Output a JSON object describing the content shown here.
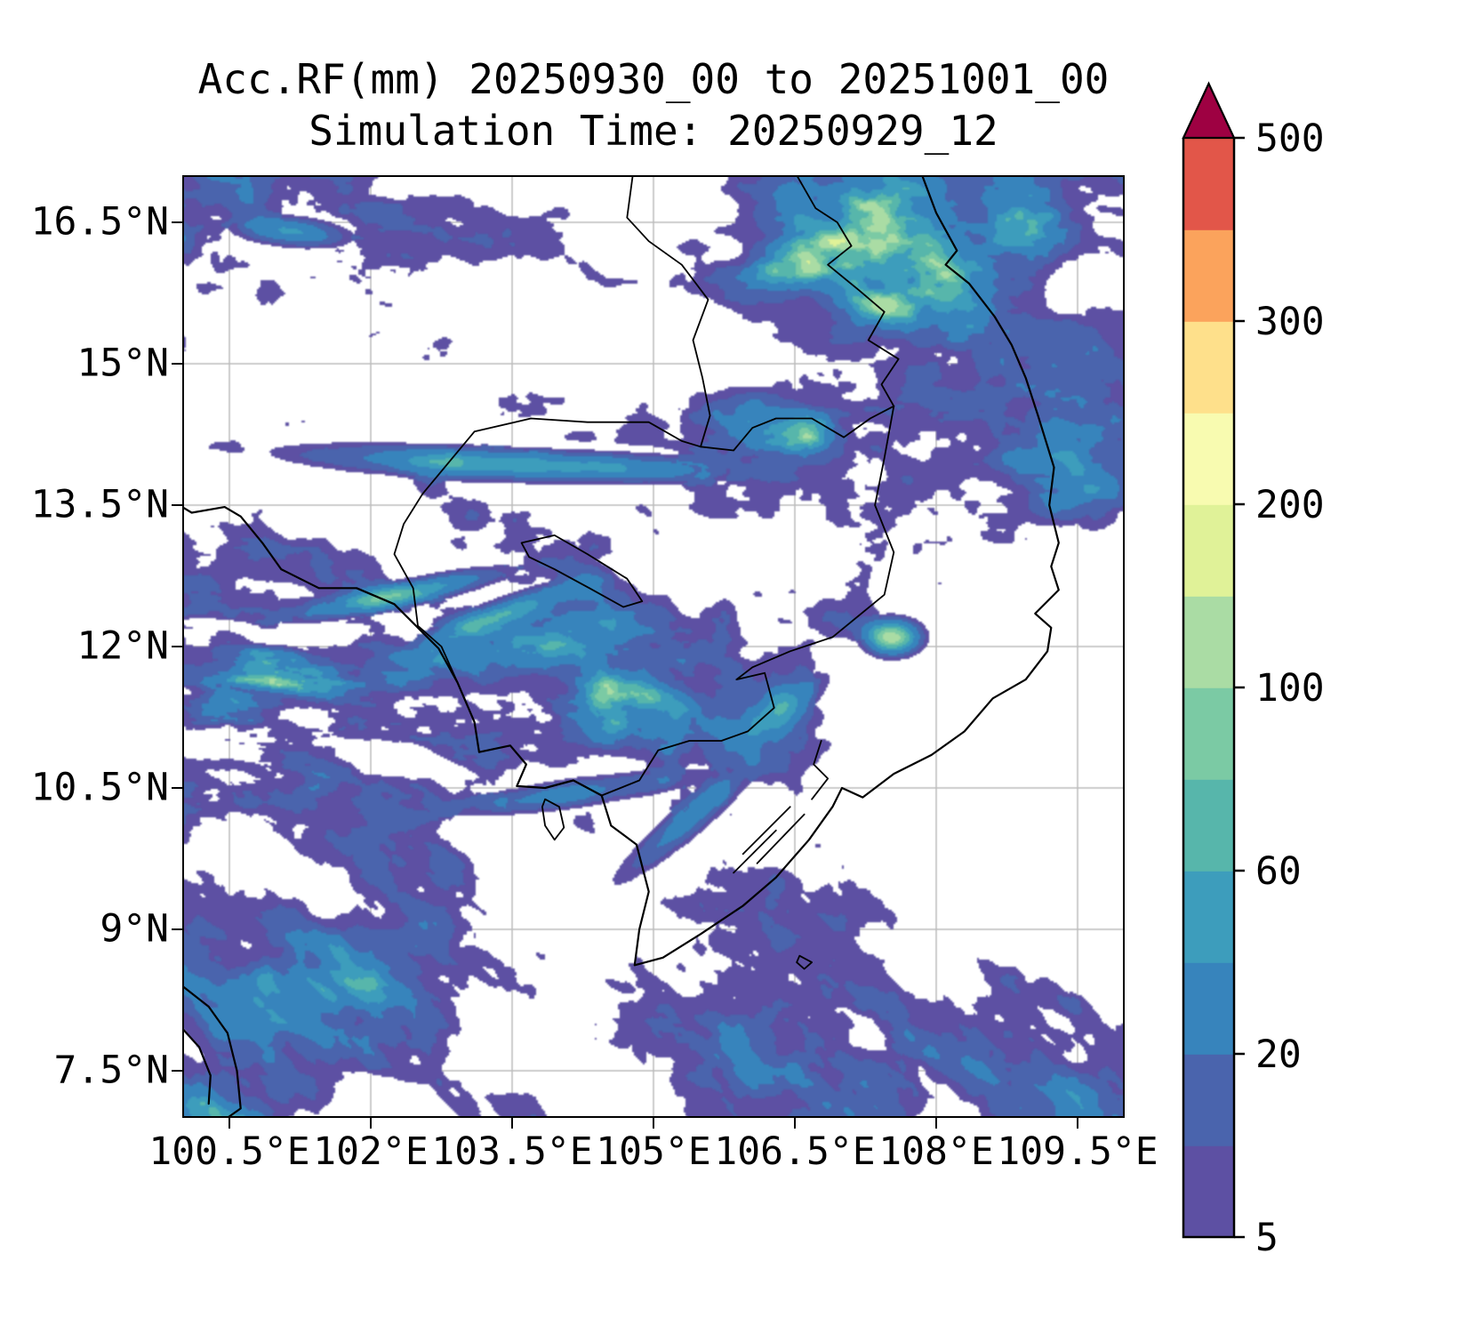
{
  "chart_data": {
    "type": "heatmap",
    "title": "Acc.RF(mm) 20250930_00 to 20251001_00",
    "subtitle": "Simulation Time: 20250929_12",
    "variable": "Accumulated Rainfall",
    "units": "mm",
    "lon_range": [
      100.0,
      110.0
    ],
    "lat_range": [
      7.0,
      17.0
    ],
    "x_ticks": [
      {
        "lon": 100.5,
        "label": "100.5°E"
      },
      {
        "lon": 102.0,
        "label": "102°E"
      },
      {
        "lon": 103.5,
        "label": "103.5°E"
      },
      {
        "lon": 105.0,
        "label": "105°E"
      },
      {
        "lon": 106.5,
        "label": "106.5°E"
      },
      {
        "lon": 108.0,
        "label": "108°E"
      },
      {
        "lon": 109.5,
        "label": "109.5°E"
      }
    ],
    "y_ticks": [
      {
        "lat": 16.5,
        "label": "16.5°N"
      },
      {
        "lat": 15.0,
        "label": "15°N"
      },
      {
        "lat": 13.5,
        "label": "13.5°N"
      },
      {
        "lat": 12.0,
        "label": "12°N"
      },
      {
        "lat": 10.5,
        "label": "10.5°N"
      },
      {
        "lat": 9.0,
        "label": "9°N"
      },
      {
        "lat": 7.5,
        "label": "7.5°N"
      }
    ],
    "colorbar": {
      "extend": "max",
      "levels": [
        5,
        10,
        20,
        40,
        60,
        80,
        100,
        150,
        200,
        250,
        300,
        400,
        500
      ],
      "colors": [
        "#5d50a3",
        "#4a64ad",
        "#3784bc",
        "#3d9dbc",
        "#57b6ab",
        "#7bcaa4",
        "#aadca4",
        "#e0f298",
        "#f8fbb0",
        "#fee08b",
        "#fba35c",
        "#e25649"
      ],
      "over_color": "#9e0142",
      "under_value_color": "#ffffff",
      "tick_values": [
        5,
        20,
        60,
        100,
        200,
        300,
        500
      ],
      "tick_labels": [
        "5",
        "20",
        "60",
        "100",
        "200",
        "300",
        "500"
      ]
    },
    "style": {
      "land_border_color": "#000000",
      "grid_color": "#bcbcbc",
      "background": "#ffffff"
    }
  }
}
